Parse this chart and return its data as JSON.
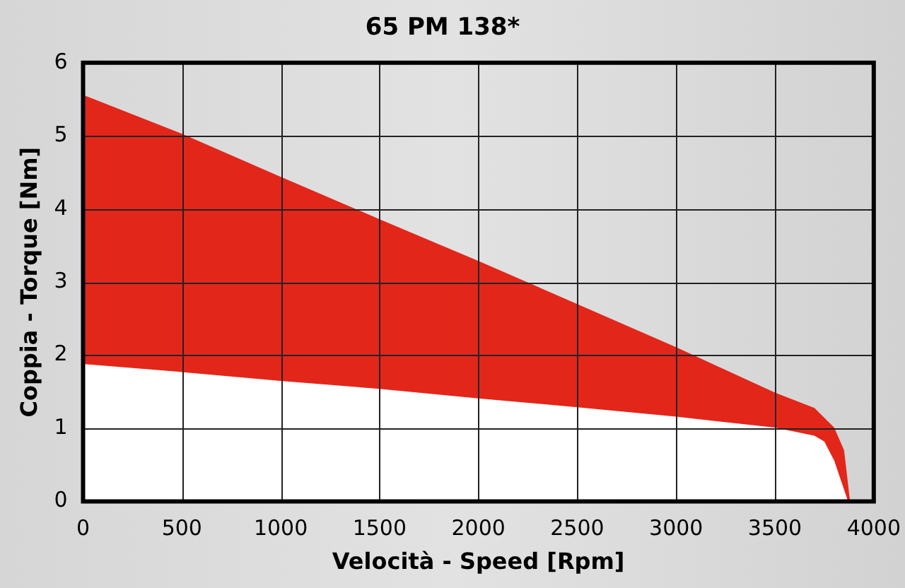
{
  "chart_data": {
    "type": "area",
    "title": "65 PM 138*",
    "xlabel": "Velocità - Speed [Rpm]",
    "ylabel": "Coppia - Torque [Nm]",
    "series": [
      {
        "color": "#e3261a",
        "x": [
          0,
          500,
          1000,
          1500,
          2000,
          2500,
          3000,
          3500,
          3700,
          3800,
          3850,
          3880
        ],
        "values": [
          5.56,
          5.03,
          4.44,
          3.86,
          3.29,
          2.7,
          2.11,
          1.49,
          1.28,
          1.01,
          0.7,
          0
        ]
      },
      {
        "color": "#ffffff",
        "x": [
          0,
          500,
          1000,
          1500,
          2000,
          2500,
          3000,
          3500,
          3700,
          3750,
          3800,
          3870
        ],
        "values": [
          1.88,
          1.77,
          1.65,
          1.54,
          1.41,
          1.29,
          1.16,
          1.01,
          0.9,
          0.82,
          0.56,
          0
        ]
      }
    ],
    "xlim": [
      0,
      4000
    ],
    "xticks": [
      0,
      500,
      1000,
      1500,
      2000,
      2500,
      3000,
      3500,
      4000
    ],
    "ylim": [
      0,
      6
    ],
    "yticks": [
      0,
      1,
      2,
      3,
      4,
      5,
      6
    ],
    "grid": true,
    "legend": false,
    "marker": "none"
  }
}
